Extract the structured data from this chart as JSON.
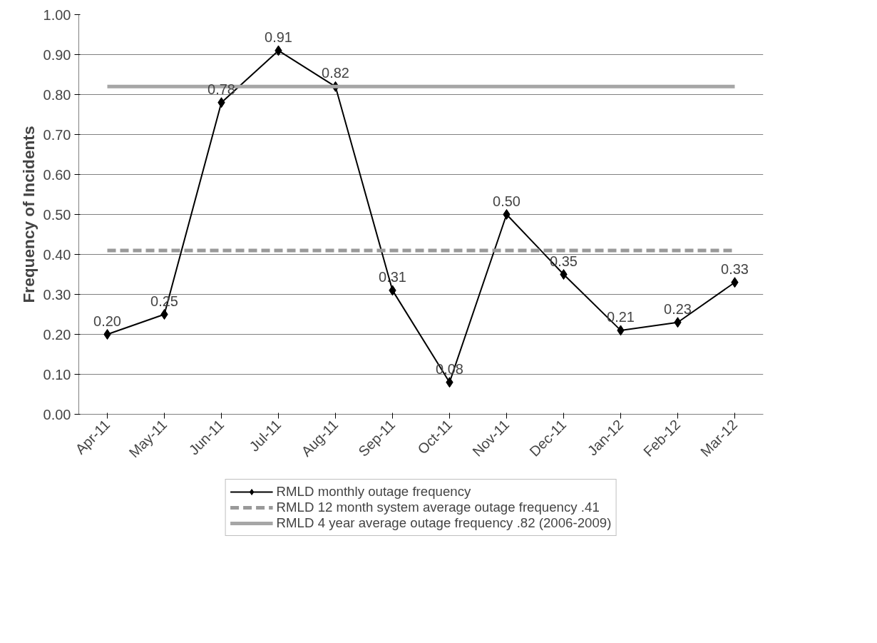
{
  "chart_data": {
    "type": "line",
    "ylabel": "Frequency of Incidents",
    "categories": [
      "Apr-11",
      "May-11",
      "Jun-11",
      "Jul-11",
      "Aug-11",
      "Sep-11",
      "Oct-11",
      "Nov-11",
      "Dec-11",
      "Jan-12",
      "Feb-12",
      "Mar-12"
    ],
    "series": [
      {
        "name": "RMLD monthly outage frequency",
        "color": "#000000",
        "marker": "diamond",
        "line_style": "solid",
        "values": [
          0.2,
          0.25,
          0.78,
          0.91,
          0.82,
          0.31,
          0.08,
          0.5,
          0.35,
          0.21,
          0.23,
          0.33
        ],
        "value_labels": [
          "0.20",
          "0.25",
          "0.78",
          "0.91",
          "0.82",
          "0.31",
          "0.08",
          "0.50",
          "0.35",
          "0.21",
          "0.23",
          "0.33"
        ]
      },
      {
        "name": "RMLD 12 month system average outage frequency .41",
        "color": "#999999",
        "marker": "none",
        "line_style": "dashed",
        "values": [
          0.41,
          0.41,
          0.41,
          0.41,
          0.41,
          0.41,
          0.41,
          0.41,
          0.41,
          0.41,
          0.41,
          0.41
        ]
      },
      {
        "name": "RMLD 4 year average outage frequency .82 (2006-2009)",
        "color": "#a6a6a6",
        "marker": "none",
        "line_style": "solid",
        "values": [
          0.82,
          0.82,
          0.82,
          0.82,
          0.82,
          0.82,
          0.82,
          0.82,
          0.82,
          0.82,
          0.82,
          0.82
        ]
      }
    ],
    "ylim": [
      0,
      1
    ],
    "yticks": [
      {
        "value": 0,
        "label": "0.00"
      },
      {
        "value": 0.1,
        "label": "0.10"
      },
      {
        "value": 0.2,
        "label": "0.20"
      },
      {
        "value": 0.3,
        "label": "0.30"
      },
      {
        "value": 0.4,
        "label": "0.40"
      },
      {
        "value": 0.5,
        "label": "0.50"
      },
      {
        "value": 0.6,
        "label": "0.60"
      },
      {
        "value": 0.7,
        "label": "0.70"
      },
      {
        "value": 0.8,
        "label": "0.80"
      },
      {
        "value": 0.9,
        "label": "0.90"
      },
      {
        "value": 1,
        "label": "1.00"
      }
    ],
    "grid": "y",
    "legend": "bottom"
  }
}
